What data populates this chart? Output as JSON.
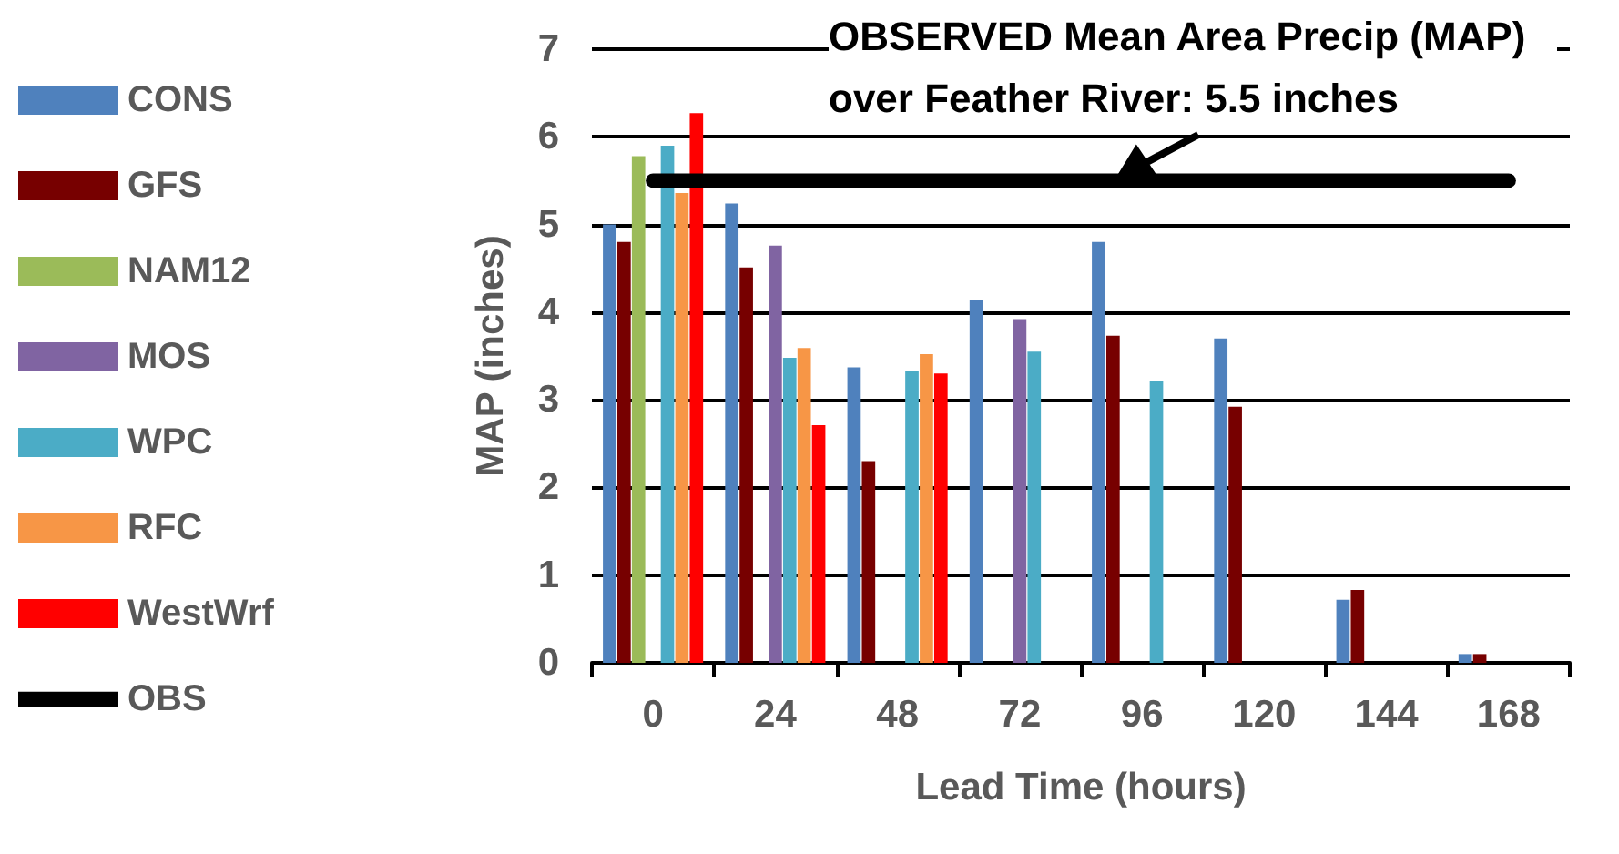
{
  "chart_data": {
    "type": "bar",
    "xlabel": "Lead Time (hours)",
    "ylabel": "MAP (inches)",
    "categories": [
      "0",
      "24",
      "48",
      "72",
      "96",
      "120",
      "144",
      "168"
    ],
    "ylim": [
      0,
      7
    ],
    "yticks": [
      0,
      1,
      2,
      3,
      4,
      5,
      6,
      7
    ],
    "grid": "y",
    "legend": "left",
    "annotations": [
      "OBSERVED Mean Area Precip (MAP) over Feather River: 5.5 inches"
    ],
    "series": [
      {
        "name": "CONS",
        "color": "#4f81bd",
        "values": [
          5.0,
          5.24,
          3.37,
          4.14,
          4.8,
          3.7,
          0.72,
          0.1
        ]
      },
      {
        "name": "GFS",
        "color": "#770000",
        "values": [
          4.8,
          4.51,
          2.3,
          null,
          3.73,
          2.92,
          0.83,
          0.1
        ]
      },
      {
        "name": "NAM12",
        "color": "#9bbb59",
        "values": [
          5.78,
          null,
          null,
          null,
          null,
          null,
          null,
          null
        ]
      },
      {
        "name": "MOS",
        "color": "#8064a2",
        "values": [
          null,
          4.76,
          null,
          3.92,
          null,
          null,
          null,
          null
        ]
      },
      {
        "name": "WPC",
        "color": "#4bacc6",
        "values": [
          5.9,
          3.48,
          3.33,
          3.55,
          3.22,
          null,
          null,
          null
        ]
      },
      {
        "name": "RFC",
        "color": "#f79646",
        "values": [
          5.36,
          3.59,
          3.52,
          null,
          null,
          null,
          null,
          null
        ]
      },
      {
        "name": "WestWrf",
        "color": "#ff0000",
        "values": [
          6.27,
          2.71,
          3.3,
          null,
          null,
          null,
          null,
          null
        ]
      },
      {
        "name": "OBS",
        "color": "#000000",
        "type": "line",
        "values": [
          5.5,
          5.5,
          5.5,
          5.5,
          5.5,
          5.5,
          5.5,
          5.5
        ]
      }
    ]
  }
}
